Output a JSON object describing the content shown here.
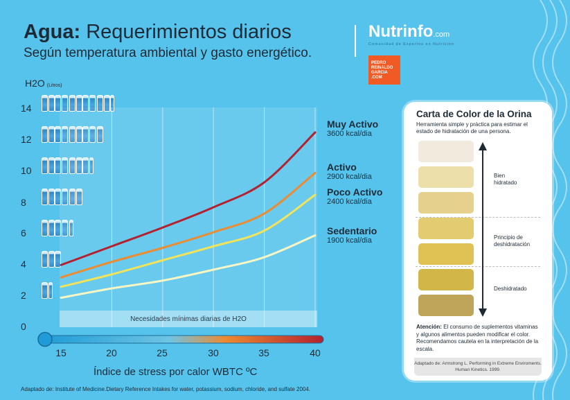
{
  "header": {
    "title_bold": "Agua:",
    "title_rest": " Requerimientos diarios",
    "subtitle": "Según temperatura ambiental y gasto energético.",
    "brand_name": "Nutrinfo",
    "brand_suffix": ".com",
    "brand_tagline": "Comunidad de Expertos en Nutrición",
    "author_logo_lines": [
      "PEDRO",
      "REINALDO",
      "GARCIA",
      ".COM"
    ]
  },
  "colors": {
    "background": "#56c3ec",
    "muy_activo": "#b5202e",
    "activo": "#ec8b2f",
    "poco_activo": "#f2e35a",
    "sedentario": "#f8f7c4",
    "brand_orange": "#f15a24"
  },
  "chart_data": {
    "type": "line",
    "title": "Agua: Requerimientos diarios",
    "subtitle": "Según temperatura ambiental y gasto energético.",
    "ylabel": "H2O",
    "ylabel_unit": "(Litros)",
    "xlabel": "Índice de stress por calor WBTC ºC",
    "xlim": [
      15,
      40
    ],
    "ylim": [
      0,
      14
    ],
    "x_ticks": [
      15,
      20,
      25,
      30,
      35,
      40
    ],
    "y_ticks": [
      0,
      2,
      4,
      6,
      8,
      10,
      12,
      14
    ],
    "grid": true,
    "baseline_note": "Necesidades mínimas diarias de H2O",
    "x": [
      15,
      20,
      25,
      30,
      35,
      40
    ],
    "series": [
      {
        "name": "Muy Activo",
        "kcal": "3600 kcal/dia",
        "color": "#b5202e",
        "values": [
          3.9,
          5.1,
          6.3,
          7.6,
          9.2,
          12.4
        ]
      },
      {
        "name": "Activo",
        "kcal": "2900 kcal/dia",
        "color": "#ec8b2f",
        "values": [
          3.1,
          4.1,
          5.0,
          6.0,
          7.2,
          9.8
        ]
      },
      {
        "name": "Poco Activo",
        "kcal": "2400 kcal/dia",
        "color": "#f2e35a",
        "values": [
          2.5,
          3.3,
          4.2,
          5.1,
          6.1,
          8.4
        ]
      },
      {
        "name": "Sedentario",
        "kcal": "1900 kcal/dia",
        "color": "#f8f7c4",
        "values": [
          1.8,
          2.4,
          2.9,
          3.6,
          4.4,
          5.8
        ]
      }
    ]
  },
  "footnote": "Adaptado de: Institute of Medicine.Dietary Reference Intakes for water, potassium, sodium, chloride, and sulfate 2004.",
  "urine_card": {
    "title": "Carta de Color de la Orina",
    "description": "Herramienta simple y práctica para estimar el estado de hidratación de una persona.",
    "swatches": [
      "#f1eadd",
      "#ecdfaa",
      "#e5d08d",
      "#e2cc6f",
      "#dfc154",
      "#d3b648",
      "#bea55a"
    ],
    "zones": [
      {
        "label_line1": "Bien",
        "label_line2": "hidratado"
      },
      {
        "label_line1": "Principio de",
        "label_line2": "deshidratación"
      },
      {
        "label_line1": "Deshidratado",
        "label_line2": ""
      }
    ],
    "note_bold": "Atención:",
    "note_text": " El consumo de suplementos vitaminas y algunos alimentos pueden modificar el color.  Recomendamos cautela en la interpretación de la escala.",
    "source": "Adaptado de: Armstrong L. Performing in Extreme Enviroments. Human Kinetics. 1999."
  }
}
